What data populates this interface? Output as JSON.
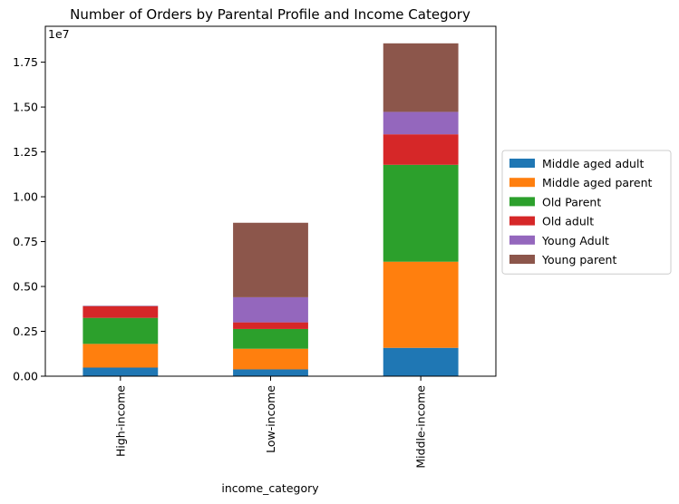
{
  "chart_data": {
    "type": "bar",
    "stacked": true,
    "title": "Number of Orders by Parental Profile and Income Category",
    "xlabel": "income_category",
    "ylabel": "",
    "y_offset_label": "1e7",
    "y_scale": 10000000,
    "ylim": [
      0,
      19500000
    ],
    "yticks": [
      0,
      2500000,
      5000000,
      7500000,
      10000000,
      12500000,
      15000000,
      17500000
    ],
    "ytick_labels": [
      "0.00",
      "0.25",
      "0.50",
      "0.75",
      "1.00",
      "1.25",
      "1.50",
      "1.75"
    ],
    "categories": [
      "High-income",
      "Low-income",
      "Middle-income"
    ],
    "series": [
      {
        "name": "Middle aged adult",
        "color": "#1f77b4",
        "values": [
          480000,
          380000,
          1580000
        ]
      },
      {
        "name": "Middle aged parent",
        "color": "#ff7f0e",
        "values": [
          1320000,
          1150000,
          4800000
        ]
      },
      {
        "name": "Old Parent",
        "color": "#2ca02c",
        "values": [
          1450000,
          1100000,
          5400000
        ]
      },
      {
        "name": "Old adult",
        "color": "#d62728",
        "values": [
          650000,
          370000,
          1700000
        ]
      },
      {
        "name": "Young Adult",
        "color": "#9467bd",
        "values": [
          20000,
          1400000,
          1250000
        ]
      },
      {
        "name": "Young parent",
        "color": "#8c564b",
        "values": [
          10000,
          4150000,
          3820000
        ]
      }
    ],
    "grid": false,
    "legend_placement": "center-right outside"
  }
}
